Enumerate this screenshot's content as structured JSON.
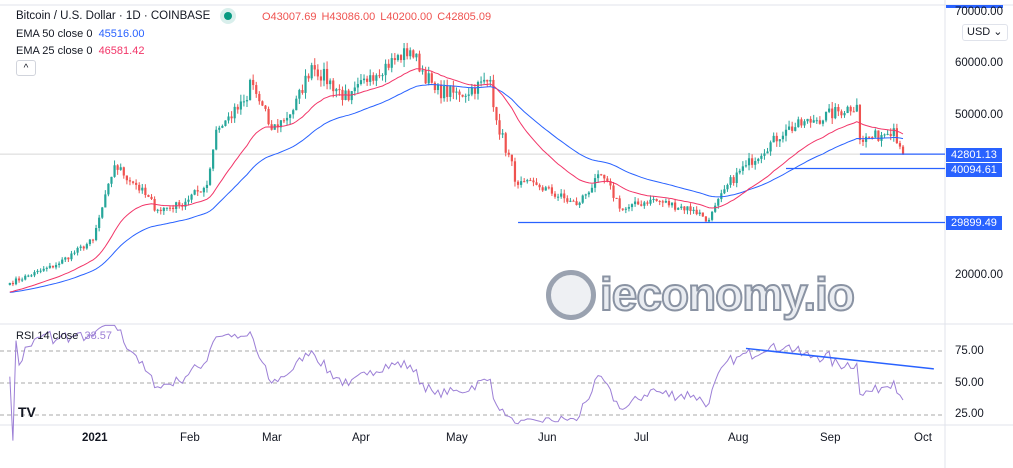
{
  "header": {
    "title": "Bitcoin / U.S. Dollar · 1D · COINBASE",
    "open": "O43007.69",
    "high": "H43086.00",
    "low": "L40200.00",
    "close": "C42805.09",
    "ema50_label": "EMA 50 close 0",
    "ema50_value": "45516.00",
    "ema25_label": "EMA 25 close 0",
    "ema25_value": "46581.42",
    "collapse": "^"
  },
  "currency": "USD",
  "rsi": {
    "label": "RSI 14 close",
    "value": "38.57"
  },
  "colors": {
    "up": "#26a69a",
    "down": "#ef5350",
    "ema50": "#2962ff",
    "ema25": "#f23669",
    "rsi": "#9c7fd6",
    "level_tag": "#2962ff"
  },
  "watermark": "ieconomy.io",
  "tv_logo": "TV",
  "chart_data": {
    "type": "candlestick",
    "price_axis": {
      "ticks": [
        "70000.00",
        "60000.00",
        "50000.00",
        "20000.00"
      ],
      "range": [
        17000,
        70000
      ]
    },
    "rsi_axis": {
      "ticks": [
        "75.00",
        "50.00",
        "25.00"
      ]
    },
    "time_axis": [
      "2021",
      "Feb",
      "Mar",
      "Apr",
      "May",
      "Jun",
      "Jul",
      "Aug",
      "Sep",
      "Oct"
    ],
    "levels": [
      {
        "value": 42801.13,
        "label": "42801.13"
      },
      {
        "value": 40094.61,
        "label": "40094.61"
      },
      {
        "value": 29899.49,
        "label": "29899.49"
      }
    ],
    "approx_closes": [
      [
        "2020-12-05",
        18500
      ],
      [
        "2020-12-20",
        21900
      ],
      [
        "2021-01-01",
        26600
      ],
      [
        "2021-01-08",
        40700
      ],
      [
        "2021-01-15",
        37000
      ],
      [
        "2021-01-22",
        32300
      ],
      [
        "2021-01-29",
        33200
      ],
      [
        "2021-02-07",
        37000
      ],
      [
        "2021-02-10",
        47400
      ],
      [
        "2021-02-20",
        53000
      ],
      [
        "2021-02-21",
        56800
      ],
      [
        "2021-02-28",
        47400
      ],
      [
        "2021-03-07",
        51100
      ],
      [
        "2021-03-13",
        59600
      ],
      [
        "2021-03-25",
        53000
      ],
      [
        "2021-04-01",
        57700
      ],
      [
        "2021-04-14",
        62400
      ],
      [
        "2021-04-22",
        54900
      ],
      [
        "2021-04-30",
        54000
      ],
      [
        "2021-05-10",
        56800
      ],
      [
        "2021-05-12",
        49200
      ],
      [
        "2021-05-19",
        37000
      ],
      [
        "2021-05-25",
        37000
      ],
      [
        "2021-06-07",
        33200
      ],
      [
        "2021-06-15",
        38900
      ],
      [
        "2021-06-22",
        32300
      ],
      [
        "2021-07-01",
        34200
      ],
      [
        "2021-07-15",
        32300
      ],
      [
        "2021-07-20",
        30400
      ],
      [
        "2021-07-26",
        37000
      ],
      [
        "2021-08-01",
        40700
      ],
      [
        "2021-08-14",
        47400
      ],
      [
        "2021-08-23",
        49200
      ],
      [
        "2021-09-06",
        52100
      ],
      [
        "2021-09-07",
        45500
      ],
      [
        "2021-09-14",
        46400
      ],
      [
        "2021-09-18",
        47700
      ],
      [
        "2021-09-21",
        42800
      ]
    ],
    "rsi_trendline": [
      [
        "2021-08-01",
        77
      ],
      [
        "2021-10-01",
        61
      ]
    ]
  }
}
